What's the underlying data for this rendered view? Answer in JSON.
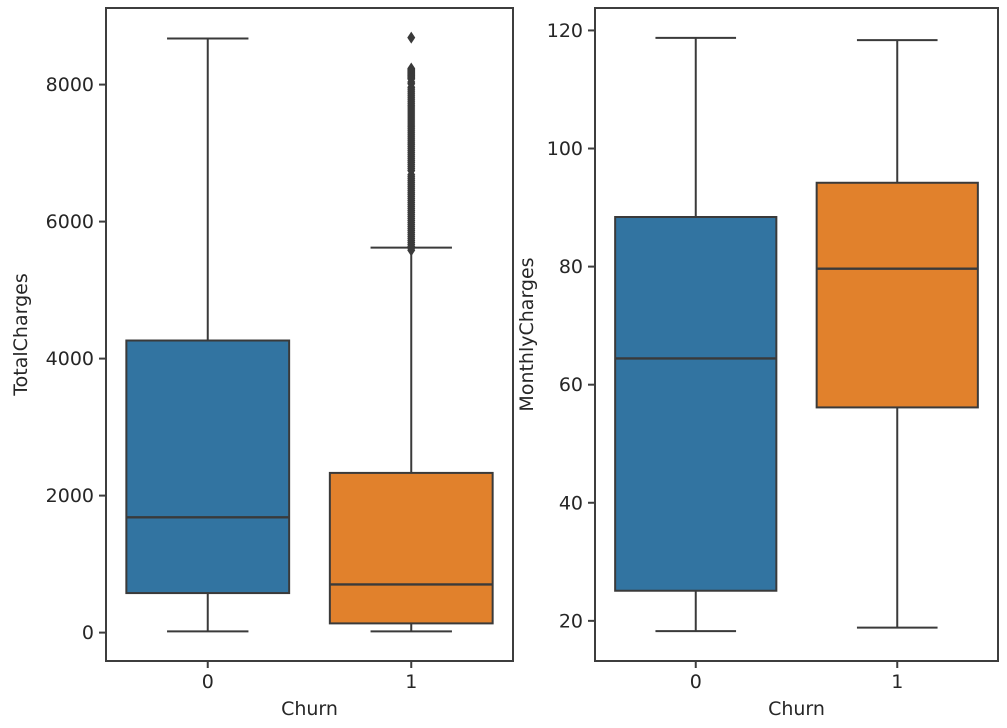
{
  "figure": {
    "background": "#ffffff"
  },
  "style": {
    "box_colors": {
      "churn_0": "#3274a1",
      "churn_1": "#e1812c"
    },
    "line_color": "#3a3a3a",
    "spine_color": "#3d3d3d",
    "text_color": "#262626"
  },
  "chart_data": [
    {
      "type": "boxplot",
      "title": "",
      "xlabel": "Churn",
      "ylabel": "TotalCharges",
      "categories": [
        "0",
        "1"
      ],
      "yticks": [
        0,
        2000,
        4000,
        6000,
        8000
      ],
      "ylim": [
        -414.5,
        9118.1
      ],
      "grid": false,
      "legend": null,
      "boxes": [
        {
          "category": "0",
          "color_key": "churn_0",
          "whisker_low": 18.8,
          "q1": 577.1,
          "median": 1683.6,
          "q3": 4264.1,
          "whisker_high": 8672.45,
          "outliers": []
        },
        {
          "category": "1",
          "color_key": "churn_1",
          "whisker_low": 18.85,
          "q1": 134.5,
          "median": 703.55,
          "q3": 2331.3,
          "whisker_high": 5620.0,
          "outliers": [
            8684.8,
            8235,
            8221,
            8207,
            8193,
            8179,
            8165,
            8151,
            8137,
            8123,
            8109,
            8095,
            8081,
            8038,
            8012,
            7962,
            7933,
            7904,
            7875,
            7846,
            7817,
            7788,
            7759,
            7730,
            7701,
            7672,
            7643,
            7614,
            7585,
            7556,
            7527,
            7498,
            7469,
            7440,
            7411,
            7382,
            7353,
            7324,
            7295,
            7266,
            7237,
            7208,
            7179,
            7150,
            7121,
            7092,
            7063,
            7034,
            7005,
            6976,
            6947,
            6918,
            6889,
            6860,
            6831,
            6802,
            6773,
            6744,
            6683,
            6654,
            6625,
            6596,
            6567,
            6538,
            6509,
            6480,
            6451,
            6422,
            6393,
            6364,
            6335,
            6306,
            6277,
            6248,
            6219,
            6190,
            6161,
            6132,
            6103,
            6074,
            6045,
            6016,
            5987,
            5958,
            5929,
            5900,
            5871,
            5842,
            5813,
            5784,
            5755,
            5726,
            5697,
            5668,
            5639,
            5610,
            5581
          ]
        }
      ]
    },
    {
      "type": "boxplot",
      "title": "",
      "xlabel": "Churn",
      "ylabel": "MonthlyCharges",
      "categories": [
        "0",
        "1"
      ],
      "yticks": [
        20,
        40,
        60,
        80,
        100,
        120
      ],
      "ylim": [
        13.2,
        123.8
      ],
      "grid": false,
      "legend": null,
      "boxes": [
        {
          "category": "0",
          "color_key": "churn_0",
          "whisker_low": 18.25,
          "q1": 25.1,
          "median": 64.45,
          "q3": 88.4,
          "whisker_high": 118.75,
          "outliers": []
        },
        {
          "category": "1",
          "color_key": "churn_1",
          "whisker_low": 18.85,
          "q1": 56.15,
          "median": 79.65,
          "q3": 94.2,
          "whisker_high": 118.35,
          "outliers": []
        }
      ]
    }
  ]
}
